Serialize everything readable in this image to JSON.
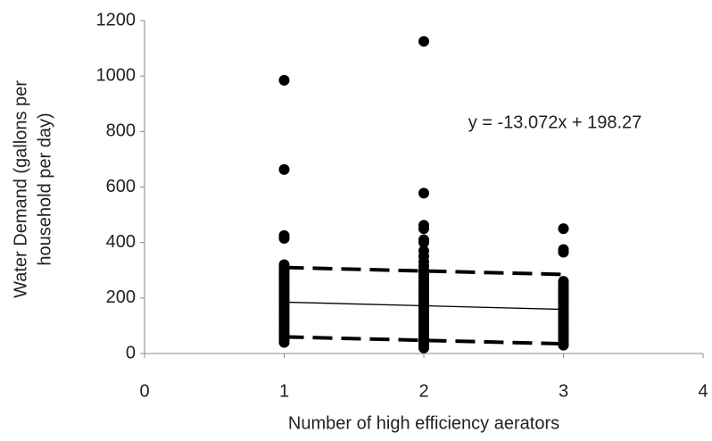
{
  "chart_data": {
    "type": "scatter",
    "xlabel": "Number of high efficiency aerators",
    "ylabel": [
      "Water Demand (gallons per",
      "household per day)"
    ],
    "annotation": "y = -13.072x + 198.27",
    "xlim": [
      0,
      4
    ],
    "xticks": [
      0,
      1,
      2,
      3,
      4
    ],
    "ylim": [
      0,
      1200
    ],
    "yticks": [
      0,
      200,
      400,
      600,
      800,
      1000,
      1200
    ],
    "grid": false,
    "points": {
      "color": "#000000",
      "x": [
        1,
        1,
        1,
        1,
        1,
        1,
        1,
        1,
        1,
        1,
        1,
        1,
        1,
        1,
        1,
        1,
        1,
        1,
        1,
        1,
        1,
        1,
        1,
        1,
        1,
        1,
        1,
        1,
        1,
        1,
        1,
        1,
        1,
        2,
        2,
        2,
        2,
        2,
        2,
        2,
        2,
        2,
        2,
        2,
        2,
        2,
        2,
        2,
        2,
        2,
        2,
        2,
        2,
        2,
        2,
        2,
        2,
        2,
        2,
        2,
        2,
        2,
        2,
        2,
        2,
        2,
        2,
        2,
        2,
        2,
        2,
        2,
        3,
        3,
        3,
        3,
        3,
        3,
        3,
        3,
        3,
        3,
        3,
        3,
        3,
        3,
        3,
        3,
        3,
        3,
        3,
        3,
        3,
        3,
        3,
        3,
        3,
        3,
        3
      ],
      "y": [
        985,
        663,
        425,
        415,
        320,
        310,
        300,
        290,
        280,
        270,
        260,
        250,
        240,
        230,
        220,
        210,
        200,
        190,
        180,
        170,
        160,
        150,
        140,
        130,
        120,
        110,
        100,
        90,
        80,
        70,
        60,
        50,
        40,
        1125,
        578,
        462,
        450,
        410,
        400,
        370,
        350,
        330,
        315,
        300,
        290,
        280,
        270,
        260,
        250,
        240,
        230,
        220,
        210,
        200,
        190,
        180,
        170,
        160,
        150,
        140,
        130,
        120,
        110,
        100,
        90,
        80,
        70,
        60,
        50,
        40,
        30,
        20,
        450,
        375,
        365,
        260,
        250,
        240,
        230,
        220,
        210,
        200,
        190,
        180,
        170,
        160,
        150,
        140,
        130,
        120,
        110,
        100,
        90,
        80,
        70,
        60,
        50,
        40,
        30
      ]
    },
    "lines": [
      {
        "style": "solid",
        "color": "#000000",
        "x": [
          1,
          3
        ],
        "y": [
          185.2,
          159.05
        ]
      },
      {
        "style": "dashed",
        "color": "#000000",
        "x": [
          1,
          3
        ],
        "y": [
          310,
          285
        ]
      },
      {
        "style": "dashed",
        "color": "#000000",
        "x": [
          1,
          3
        ],
        "y": [
          60,
          35
        ]
      }
    ]
  }
}
